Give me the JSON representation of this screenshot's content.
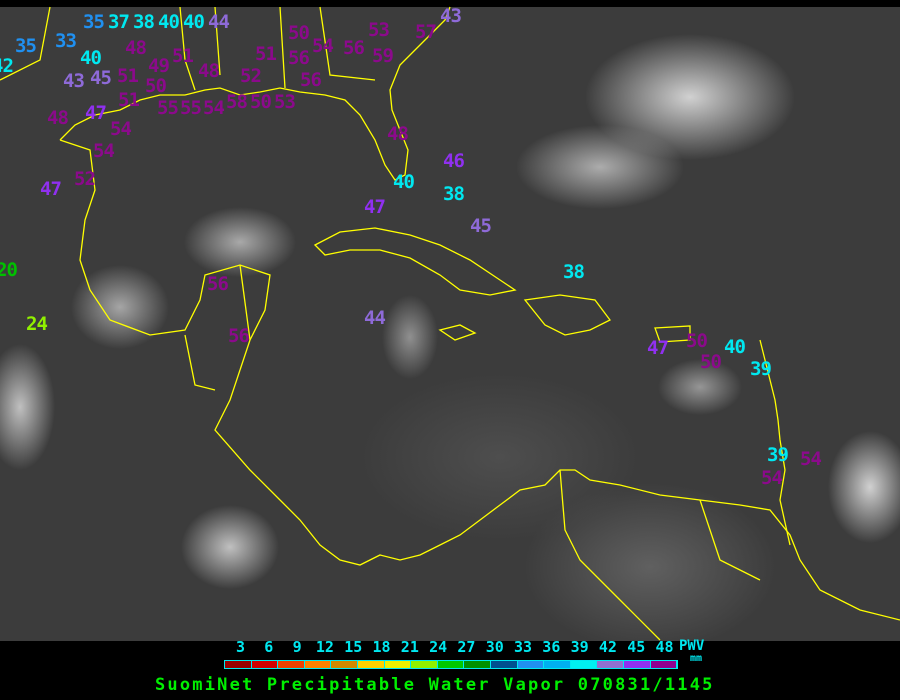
{
  "map": {
    "title": "SuomiNet Precipitable Water Vapor 070831/1145",
    "coastline_color": "#ffff00",
    "background": "infrared satellite imagery",
    "stations": [
      {
        "value": "35"
      },
      {
        "value": "33"
      },
      {
        "value": "35"
      },
      {
        "value": "37"
      },
      {
        "value": "38"
      },
      {
        "value": "40"
      },
      {
        "value": "40"
      },
      {
        "value": "44"
      },
      {
        "value": "40"
      },
      {
        "value": "43"
      },
      {
        "value": "45"
      },
      {
        "value": "48"
      },
      {
        "value": "49"
      },
      {
        "value": "51"
      },
      {
        "value": "50"
      },
      {
        "value": "51"
      },
      {
        "value": "48"
      },
      {
        "value": "51"
      },
      {
        "value": "55"
      },
      {
        "value": "55"
      },
      {
        "value": "54"
      },
      {
        "value": "58"
      },
      {
        "value": "50"
      },
      {
        "value": "53"
      },
      {
        "value": "52"
      },
      {
        "value": "51"
      },
      {
        "value": "50"
      },
      {
        "value": "54"
      },
      {
        "value": "56"
      },
      {
        "value": "56"
      },
      {
        "value": "56"
      },
      {
        "value": "53"
      },
      {
        "value": "59"
      },
      {
        "value": "57"
      },
      {
        "value": "43"
      },
      {
        "value": "48"
      },
      {
        "value": "47"
      },
      {
        "value": "54"
      },
      {
        "value": "54"
      },
      {
        "value": "52"
      },
      {
        "value": "47"
      },
      {
        "value": "48"
      },
      {
        "value": "40"
      },
      {
        "value": "47"
      },
      {
        "value": "46"
      },
      {
        "value": "38"
      },
      {
        "value": "45"
      },
      {
        "value": "38"
      },
      {
        "value": "20"
      },
      {
        "value": "24"
      },
      {
        "value": "56"
      },
      {
        "value": "56"
      },
      {
        "value": "44"
      },
      {
        "value": "47"
      },
      {
        "value": "50"
      },
      {
        "value": "50"
      },
      {
        "value": "40"
      },
      {
        "value": "39"
      },
      {
        "value": "39"
      },
      {
        "value": "54"
      },
      {
        "value": "54"
      },
      {
        "value": "42"
      }
    ]
  },
  "legend": {
    "ticks": [
      "3",
      "6",
      "9",
      "12",
      "15",
      "18",
      "21",
      "24",
      "27",
      "30",
      "33",
      "36",
      "39",
      "42",
      "45",
      "48"
    ],
    "colors": [
      "#990000",
      "#d00000",
      "#f04000",
      "#ff8000",
      "#d08800",
      "#ffd000",
      "#f0f000",
      "#90f000",
      "#00c800",
      "#009000",
      "#005090",
      "#2090f0",
      "#00b0f0",
      "#00f0f0",
      "#9070d0",
      "#9030f0",
      "#900090"
    ],
    "unit_name": "PWV",
    "unit": "mm",
    "border_color": "#00e8f0",
    "title_color": "#00f000"
  }
}
